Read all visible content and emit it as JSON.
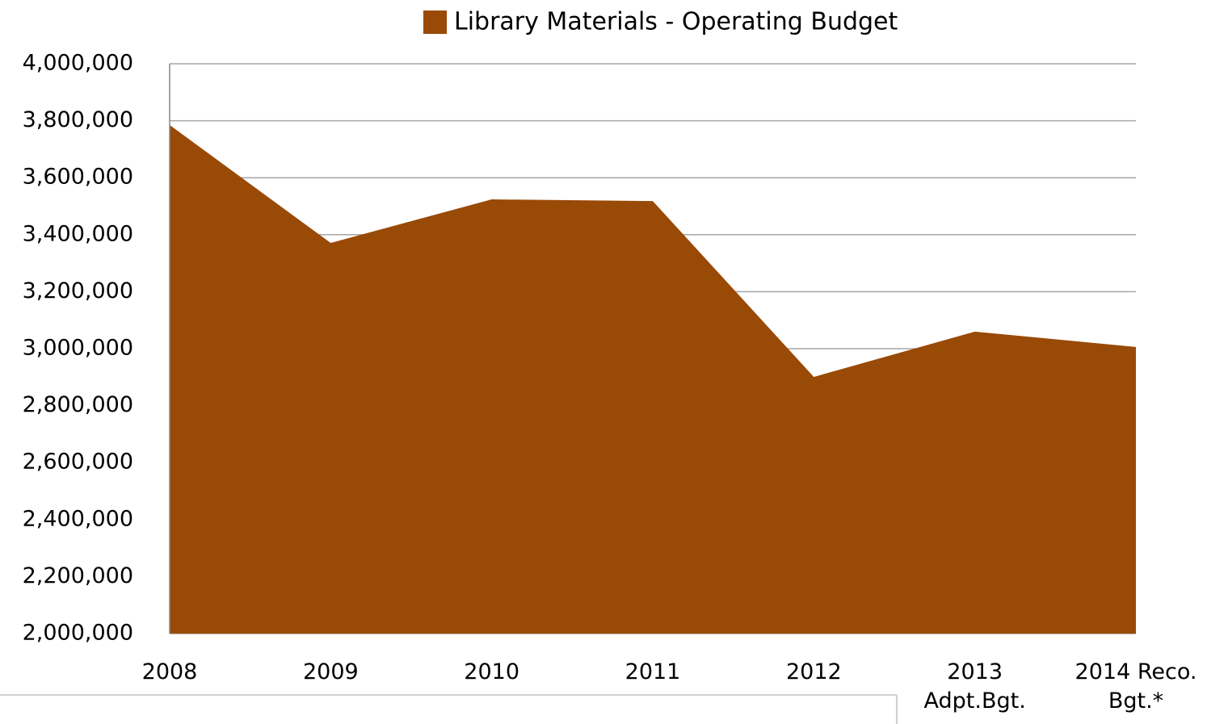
{
  "chart_data": {
    "type": "area",
    "categories": [
      "2008",
      "2009",
      "2010",
      "2011",
      "2012",
      "2013 Adpt.Bgt.",
      "2014 Reco. Bgt.*"
    ],
    "series": [
      {
        "name": "Library Materials - Operating Budget",
        "color": "#994a07",
        "values": [
          3785000,
          3371000,
          3524000,
          3518000,
          2901000,
          3060000,
          3006000
        ]
      }
    ],
    "ylim": [
      2000000,
      4000000
    ],
    "yticks": [
      {
        "value": 2000000,
        "label": "2,000,000"
      },
      {
        "value": 2200000,
        "label": "2,200,000"
      },
      {
        "value": 2400000,
        "label": "2,400,000"
      },
      {
        "value": 2600000,
        "label": "2,600,000"
      },
      {
        "value": 2800000,
        "label": "2,800,000"
      },
      {
        "value": 3000000,
        "label": "3,000,000"
      },
      {
        "value": 3200000,
        "label": "3,200,000"
      },
      {
        "value": 3400000,
        "label": "3,400,000"
      },
      {
        "value": 3600000,
        "label": "3,600,000"
      },
      {
        "value": 3800000,
        "label": "3,800,000"
      },
      {
        "value": 4000000,
        "label": "4,000,000"
      }
    ],
    "grid": true,
    "legend": "top"
  }
}
